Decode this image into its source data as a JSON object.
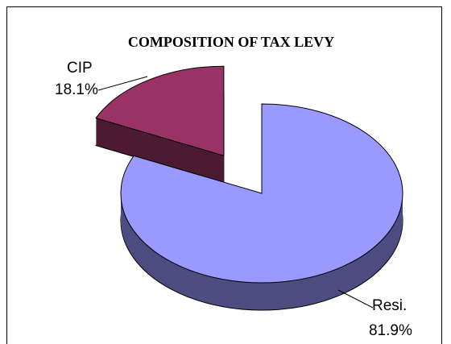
{
  "chart_data": {
    "type": "pie",
    "title": "COMPOSITION OF TAX LEVY",
    "categories": [
      "CIP",
      "Resi."
    ],
    "values": [
      18.1,
      81.9
    ],
    "value_labels": [
      "18.1%",
      "81.9%"
    ],
    "colors": [
      "#993366",
      "#9999ff"
    ]
  }
}
